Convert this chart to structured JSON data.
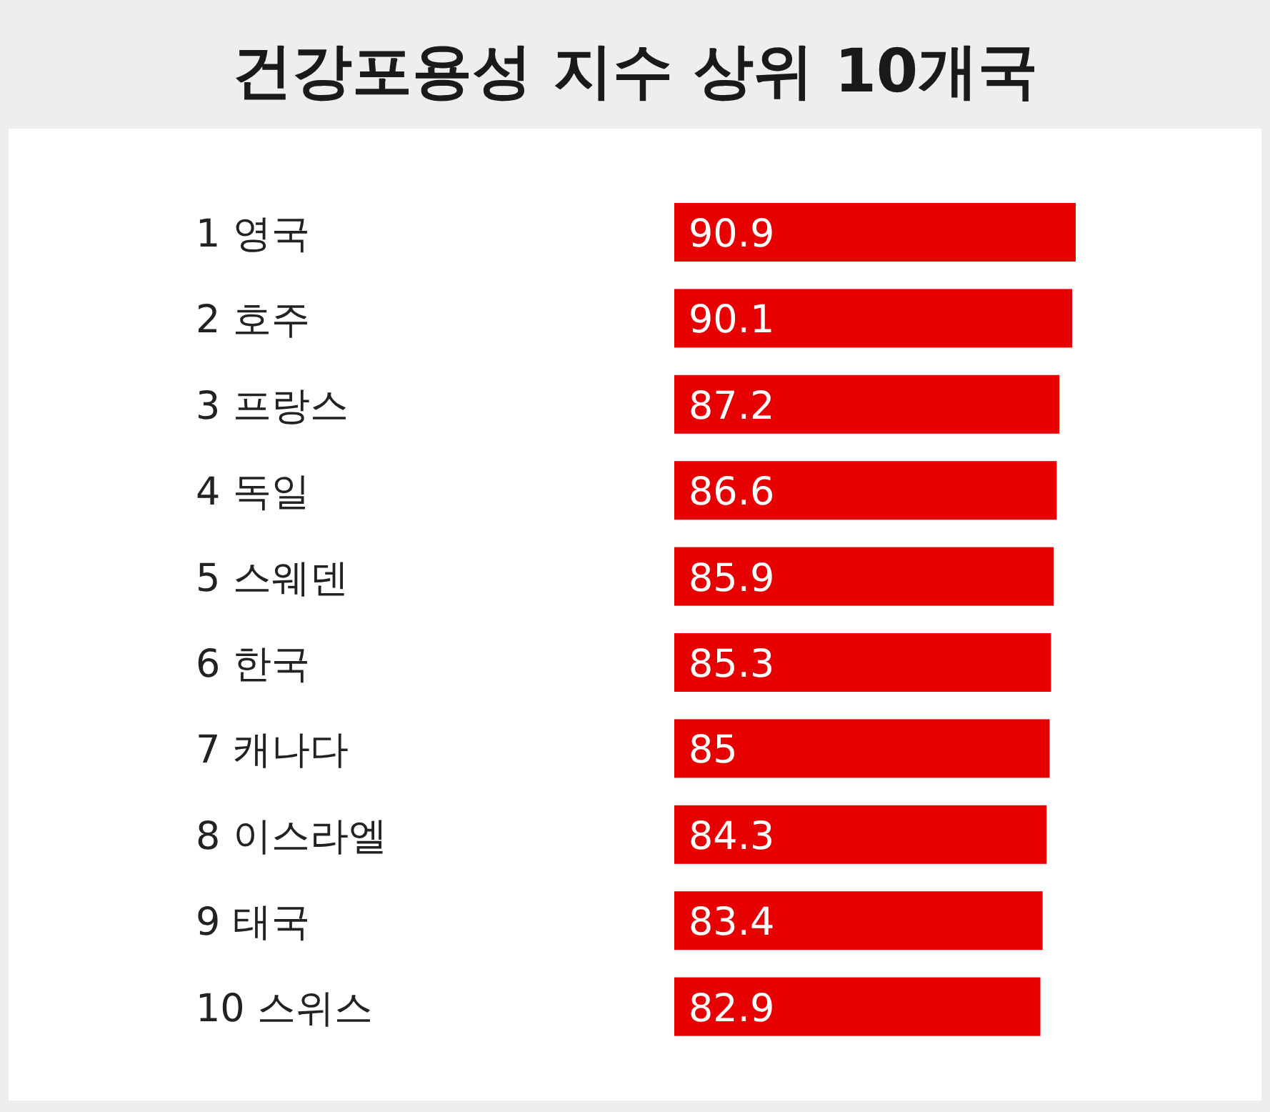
{
  "chart_data": {
    "type": "bar",
    "orientation": "horizontal",
    "title": "건강포용성 지수 상위 10개국",
    "categories": [
      "1 영국",
      "2 호주",
      "3 프랑스",
      "4 독일",
      "5 스웨덴",
      "6 한국",
      "7 캐나다",
      "8 이스라엘",
      "9 태국",
      "10 스위스"
    ],
    "values": [
      90.9,
      90.1,
      87.2,
      86.6,
      85.9,
      85.3,
      85,
      84.3,
      83.4,
      82.9
    ],
    "color": "#e60000",
    "data_labels": true
  }
}
